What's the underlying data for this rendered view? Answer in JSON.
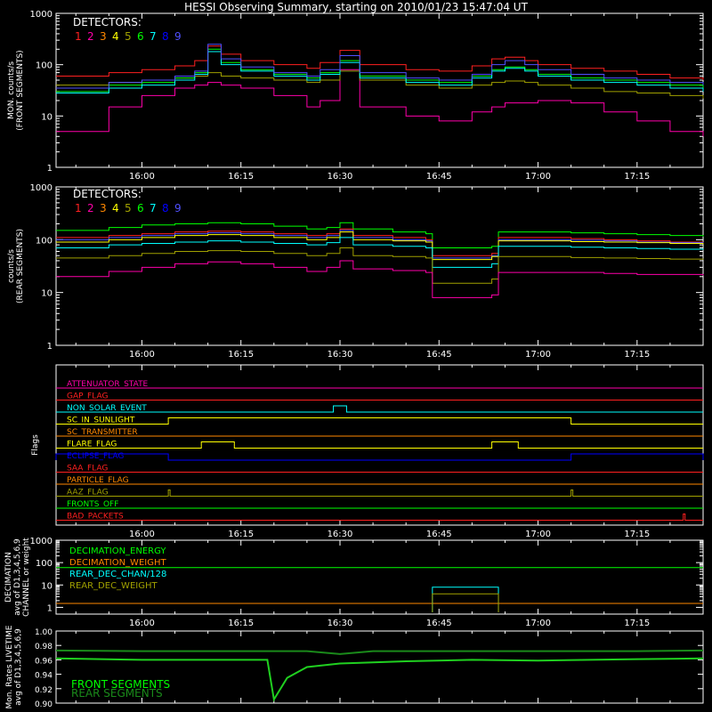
{
  "title": "HESSI Observing Summary, starting on 2010/01/23 15:47:04 UT",
  "x_tick_labels": [
    "16:00",
    "16:15",
    "16:30",
    "16:45",
    "17:00",
    "17:15"
  ],
  "colors": {
    "d1": "#ff2020",
    "d2": "#ff00aa",
    "d3": "#ff8800",
    "d4": "#ffff00",
    "d5": "#a0a000",
    "d6": "#00ff00",
    "d7": "#00ffff",
    "d8": "#0000ff",
    "d9": "#5050ff"
  },
  "chart_data": [
    {
      "type": "line",
      "id": "front",
      "ylabel_lines": [
        "MON. counts/s",
        "(FRONT SEGMENTS)"
      ],
      "ylog": true,
      "ylim": [
        1,
        1000
      ],
      "y_tick_labels": [
        "1",
        "10",
        "100",
        "1000"
      ],
      "legend_title": "DETECTORS:",
      "legend_numbers": [
        "1",
        "2",
        "3",
        "4",
        "5",
        "6",
        "7",
        "8",
        "9"
      ],
      "x": [
        "15:47",
        "15:55",
        "16:00",
        "16:05",
        "16:08",
        "16:10",
        "16:12",
        "16:15",
        "16:20",
        "16:25",
        "16:27",
        "16:30",
        "16:33",
        "16:40",
        "16:45",
        "16:50",
        "16:53",
        "16:55",
        "16:58",
        "17:00",
        "17:05",
        "17:10",
        "17:15",
        "17:20",
        "17:25"
      ],
      "series": [
        {
          "color_key": "d1",
          "values": [
            60,
            70,
            80,
            95,
            120,
            230,
            160,
            120,
            100,
            85,
            110,
            190,
            100,
            80,
            75,
            95,
            130,
            140,
            120,
            100,
            85,
            75,
            65,
            55,
            50
          ]
        },
        {
          "color_key": "d2",
          "values": [
            5,
            15,
            25,
            35,
            40,
            45,
            40,
            35,
            25,
            15,
            20,
            80,
            15,
            10,
            8,
            12,
            15,
            18,
            18,
            20,
            18,
            12,
            8,
            5,
            4
          ]
        },
        {
          "color_key": "d5",
          "values": [
            40,
            45,
            50,
            55,
            60,
            70,
            60,
            55,
            50,
            45,
            50,
            75,
            50,
            40,
            35,
            40,
            45,
            48,
            45,
            40,
            35,
            30,
            28,
            25,
            22
          ]
        },
        {
          "color_key": "d6",
          "values": [
            30,
            40,
            45,
            55,
            70,
            200,
            110,
            80,
            65,
            55,
            70,
            120,
            60,
            50,
            45,
            60,
            80,
            90,
            80,
            65,
            55,
            50,
            45,
            40,
            35
          ]
        },
        {
          "color_key": "d7",
          "values": [
            28,
            35,
            40,
            50,
            65,
            180,
            100,
            75,
            60,
            50,
            65,
            110,
            55,
            45,
            40,
            55,
            75,
            85,
            75,
            60,
            50,
            45,
            40,
            35,
            30
          ]
        },
        {
          "color_key": "d9",
          "values": [
            35,
            45,
            50,
            60,
            75,
            250,
            130,
            90,
            70,
            60,
            80,
            150,
            70,
            55,
            50,
            65,
            100,
            120,
            100,
            80,
            65,
            55,
            50,
            45,
            40
          ]
        }
      ]
    },
    {
      "type": "line",
      "id": "rear",
      "ylabel_lines": [
        "counts/s",
        "(REAR SEGMENTS)"
      ],
      "ylog": true,
      "ylim": [
        1,
        1000
      ],
      "y_tick_labels": [
        "1",
        "10",
        "100",
        "1000"
      ],
      "legend_title": "DETECTORS:",
      "legend_numbers": [
        "1",
        "2",
        "3",
        "4",
        "5",
        "6",
        "7",
        "8",
        "9"
      ],
      "x": [
        "15:47",
        "15:55",
        "16:00",
        "16:05",
        "16:10",
        "16:15",
        "16:20",
        "16:25",
        "16:28",
        "16:30",
        "16:32",
        "16:38",
        "16:43",
        "16:44",
        "16:50",
        "16:53",
        "16:54",
        "17:00",
        "17:05",
        "17:10",
        "17:15",
        "17:20",
        "17:25"
      ],
      "series": [
        {
          "color_key": "d6",
          "values": [
            150,
            170,
            190,
            200,
            210,
            200,
            180,
            160,
            170,
            210,
            160,
            140,
            130,
            70,
            70,
            75,
            140,
            140,
            135,
            130,
            125,
            120,
            115
          ]
        },
        {
          "color_key": "d1",
          "values": [
            110,
            120,
            130,
            140,
            145,
            140,
            130,
            120,
            130,
            160,
            120,
            110,
            100,
            50,
            50,
            55,
            110,
            110,
            105,
            100,
            95,
            90,
            90
          ]
        },
        {
          "color_key": "d9",
          "values": [
            100,
            110,
            120,
            130,
            135,
            130,
            120,
            110,
            120,
            150,
            110,
            100,
            95,
            45,
            45,
            50,
            100,
            100,
            98,
            95,
            90,
            88,
            85
          ]
        },
        {
          "color_key": "d4",
          "values": [
            90,
            100,
            110,
            120,
            125,
            120,
            110,
            100,
            110,
            140,
            100,
            95,
            90,
            42,
            42,
            48,
            95,
            95,
            92,
            90,
            88,
            85,
            82
          ]
        },
        {
          "color_key": "d7",
          "values": [
            70,
            80,
            85,
            90,
            95,
            90,
            85,
            80,
            88,
            110,
            80,
            75,
            70,
            30,
            30,
            35,
            75,
            75,
            72,
            70,
            68,
            66,
            65
          ]
        },
        {
          "color_key": "d5",
          "values": [
            45,
            50,
            55,
            60,
            62,
            60,
            55,
            50,
            55,
            70,
            50,
            48,
            45,
            15,
            15,
            18,
            48,
            48,
            46,
            45,
            44,
            43,
            42
          ]
        },
        {
          "color_key": "d2",
          "values": [
            20,
            25,
            30,
            35,
            38,
            35,
            30,
            25,
            30,
            40,
            28,
            26,
            24,
            8,
            8,
            9,
            24,
            24,
            24,
            23,
            22,
            22,
            21
          ]
        }
      ]
    },
    {
      "type": "line",
      "id": "flags",
      "ylabel_lines": [
        "Flags"
      ],
      "flags": [
        {
          "name": "ATTENUATOR_STATE",
          "color_key": "d2"
        },
        {
          "name": "GAP_FLAG",
          "color_key": "d1"
        },
        {
          "name": "NON_SOLAR_EVENT",
          "color_key": "d7",
          "high": [
            [
              "16:29",
              "16:31"
            ]
          ]
        },
        {
          "name": "SC_IN_SUNLIGHT",
          "color_key": "d4",
          "high": [
            [
              "16:04",
              "17:05"
            ]
          ]
        },
        {
          "name": "SC_TRANSMITTER",
          "color_key": "d3"
        },
        {
          "name": "FLARE_FLAG",
          "color_key": "d4",
          "high": [
            [
              "16:09",
              "16:14"
            ],
            [
              "16:53",
              "16:57"
            ]
          ]
        },
        {
          "name": "ECLIPSE_FLAG",
          "color_key": "d8",
          "high": [
            [
              "15:47",
              "16:04"
            ],
            [
              "17:05",
              "17:25"
            ]
          ]
        },
        {
          "name": "SAA_FLAG",
          "color_key": "d1"
        },
        {
          "name": "PARTICLE_FLAG",
          "color_key": "d3"
        },
        {
          "name": "AAZ_FLAG",
          "color_key": "d5",
          "high": [
            [
              "16:04",
              "16:04"
            ],
            [
              "17:05",
              "17:05"
            ]
          ]
        },
        {
          "name": "FRONTS_OFF",
          "color_key": "d6"
        },
        {
          "name": "BAD_PACKETS",
          "color_key": "d1",
          "high": [
            [
              "17:22",
              "17:22"
            ]
          ]
        }
      ]
    },
    {
      "type": "line",
      "id": "decimation",
      "ylabel_lines": [
        "DECIMATION",
        "avg of D1,3,4,5,6,9",
        "CHANNEL or weight"
      ],
      "ylog": true,
      "ylim": [
        0.5,
        1000
      ],
      "y_tick_labels": [
        "1",
        "10",
        "100",
        "1000"
      ],
      "legend": [
        {
          "name": "DECIMATION_ENERGY",
          "color_key": "d6"
        },
        {
          "name": "DECIMATION_WEIGHT",
          "color_key": "d3"
        },
        {
          "name": "REAR_DEC_CHAN/128",
          "color_key": "d7"
        },
        {
          "name": "REAR_DEC_WEIGHT",
          "color_key": "d5"
        }
      ],
      "series": [
        {
          "name": "DECIMATION_ENERGY",
          "color_key": "d6",
          "segments": [
            [
              "15:47",
              "17:25",
              60
            ]
          ]
        },
        {
          "name": "DECIMATION_WEIGHT",
          "color_key": "d3",
          "segments": [
            [
              "15:47",
              "17:25",
              1.5
            ]
          ]
        },
        {
          "name": "REAR_DEC_CHAN/128",
          "color_key": "d7",
          "box": [
            "16:44",
            "16:54",
            8,
            0.6
          ]
        },
        {
          "name": "REAR_DEC_WEIGHT",
          "color_key": "d5",
          "box": [
            "16:44",
            "16:54",
            4,
            0.6
          ]
        }
      ]
    },
    {
      "type": "line",
      "id": "livetime",
      "ylabel_lines": [
        "Mon. Rates LIVETIME",
        "avg of D1,3,4,5,6,9"
      ],
      "ylim": [
        0.9,
        1.0
      ],
      "y_tick_labels": [
        "0.90",
        "0.92",
        "0.94",
        "0.96",
        "0.98",
        "1.00"
      ],
      "legend": [
        {
          "name": "FRONT SEGMENTS",
          "color_key": "d6"
        },
        {
          "name": "REAR SEGMENTS",
          "color_key": "rear_green"
        }
      ],
      "series": [
        {
          "name": "REAR SEGMENTS",
          "color": "#1a8a1a",
          "x": [
            "15:47",
            "16:00",
            "16:15",
            "16:25",
            "16:30",
            "16:35",
            "16:45",
            "17:00",
            "17:15",
            "17:25"
          ],
          "values": [
            0.973,
            0.972,
            0.972,
            0.972,
            0.968,
            0.972,
            0.972,
            0.972,
            0.972,
            0.973
          ]
        },
        {
          "name": "FRONT SEGMENTS",
          "color": "#20d020",
          "x": [
            "15:47",
            "16:00",
            "16:10",
            "16:19",
            "16:20",
            "16:22",
            "16:25",
            "16:30",
            "16:40",
            "16:50",
            "17:00",
            "17:15",
            "17:25"
          ],
          "values": [
            0.962,
            0.96,
            0.96,
            0.96,
            0.905,
            0.935,
            0.95,
            0.955,
            0.958,
            0.96,
            0.959,
            0.961,
            0.962
          ]
        }
      ]
    }
  ]
}
